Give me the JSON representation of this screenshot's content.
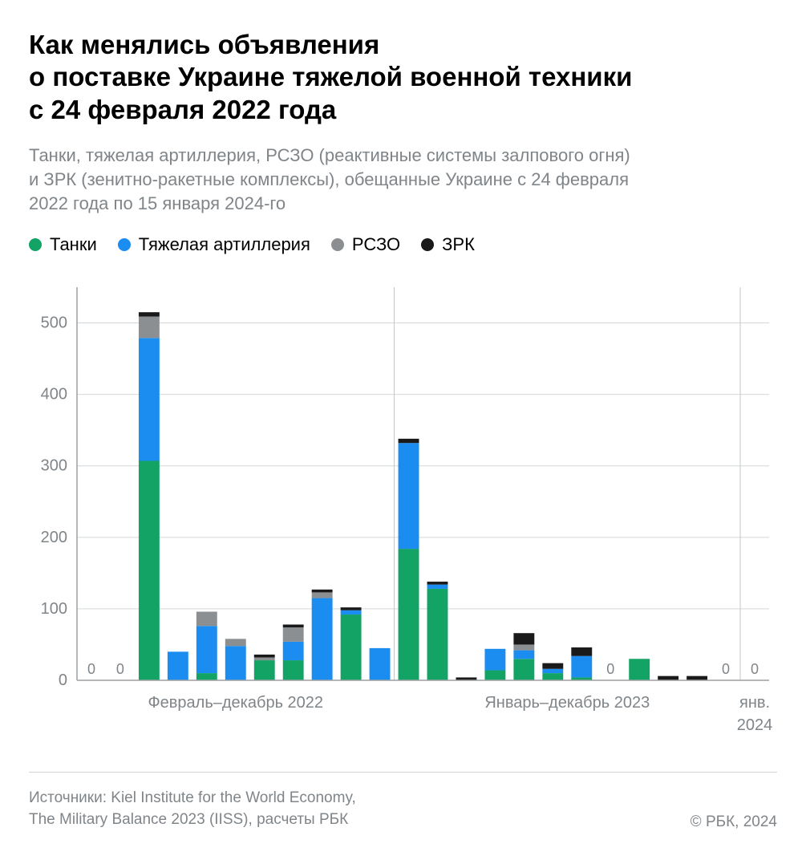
{
  "title_lines": [
    "Как менялись объявления",
    "о поставке Украине тяжелой военной техники",
    "с 24 февраля 2022 года"
  ],
  "title_fontsize": 33,
  "subtitle_lines": [
    "Танки, тяжелая артиллерия, РСЗО (реактивные системы залпового огня)",
    "и ЗРК (зенитно-ракетные комплексы), обещанные Украине с 24 февраля",
    "2022 года по 15 января 2024-го"
  ],
  "subtitle_fontsize": 22,
  "subtitle_color": "#808589",
  "legend_fontsize": 22,
  "legend": [
    {
      "label": "Танки",
      "color": "#13a465"
    },
    {
      "label": "Тяжелая артиллерия",
      "color": "#1b8df0"
    },
    {
      "label": "РСЗО",
      "color": "#8b8f92"
    },
    {
      "label": "ЗРК",
      "color": "#1a1a1a"
    }
  ],
  "chart": {
    "type": "stacked-bar",
    "background_color": "#ffffff",
    "axis_color": "#9ca0a3",
    "grid_color": "#d4d7d9",
    "divider_color": "#c2c6c9",
    "tick_label_color": "#808589",
    "tick_fontsize": 20,
    "bar_label_fontsize": 18,
    "xaxis_label_fontsize": 20,
    "ylim": [
      0,
      550
    ],
    "yticks": [
      0,
      100,
      200,
      300,
      400,
      500
    ],
    "bar_gap_ratio": 0.28,
    "series_keys": [
      "tanks",
      "artillery",
      "mlrs",
      "sam"
    ],
    "series_colors": {
      "tanks": "#13a465",
      "artillery": "#1b8df0",
      "mlrs": "#8b8f92",
      "sam": "#1a1a1a"
    },
    "periods": [
      {
        "label": "Февраль–декабрь 2022",
        "bars": [
          {
            "tanks": 0,
            "artillery": 0,
            "mlrs": 0,
            "sam": 0,
            "zero_label": true
          },
          {
            "tanks": 0,
            "artillery": 0,
            "mlrs": 0,
            "sam": 0,
            "zero_label": true
          },
          {
            "tanks": 307,
            "artillery": 172,
            "mlrs": 30,
            "sam": 6
          },
          {
            "tanks": 0,
            "artillery": 40,
            "mlrs": 0,
            "sam": 0
          },
          {
            "tanks": 10,
            "artillery": 66,
            "mlrs": 20,
            "sam": 0
          },
          {
            "tanks": 0,
            "artillery": 48,
            "mlrs": 10,
            "sam": 0
          },
          {
            "tanks": 28,
            "artillery": 0,
            "mlrs": 4,
            "sam": 4
          },
          {
            "tanks": 28,
            "artillery": 26,
            "mlrs": 20,
            "sam": 4
          },
          {
            "tanks": 0,
            "artillery": 115,
            "mlrs": 8,
            "sam": 4
          },
          {
            "tanks": 92,
            "artillery": 6,
            "mlrs": 0,
            "sam": 4
          },
          {
            "tanks": 0,
            "artillery": 45,
            "mlrs": 0,
            "sam": 0
          }
        ]
      },
      {
        "label": "Январь–декабрь 2023",
        "bars": [
          {
            "tanks": 184,
            "artillery": 148,
            "mlrs": 0,
            "sam": 6
          },
          {
            "tanks": 128,
            "artillery": 6,
            "mlrs": 0,
            "sam": 4
          },
          {
            "tanks": 0,
            "artillery": 0,
            "mlrs": 0,
            "sam": 4
          },
          {
            "tanks": 14,
            "artillery": 30,
            "mlrs": 0,
            "sam": 0
          },
          {
            "tanks": 30,
            "artillery": 12,
            "mlrs": 8,
            "sam": 16
          },
          {
            "tanks": 10,
            "artillery": 6,
            "mlrs": 0,
            "sam": 8
          },
          {
            "tanks": 4,
            "artillery": 30,
            "mlrs": 0,
            "sam": 12
          },
          {
            "tanks": 0,
            "artillery": 0,
            "mlrs": 0,
            "sam": 0,
            "zero_label": true
          },
          {
            "tanks": 30,
            "artillery": 0,
            "mlrs": 0,
            "sam": 0
          },
          {
            "tanks": 0,
            "artillery": 0,
            "mlrs": 0,
            "sam": 6
          },
          {
            "tanks": 0,
            "artillery": 0,
            "mlrs": 0,
            "sam": 6
          },
          {
            "tanks": 0,
            "artillery": 0,
            "mlrs": 0,
            "sam": 0,
            "zero_label": true
          }
        ]
      },
      {
        "label_lines": [
          "янв.",
          "2024"
        ],
        "bars": [
          {
            "tanks": 0,
            "artillery": 0,
            "mlrs": 0,
            "sam": 0,
            "zero_label": true
          }
        ]
      }
    ]
  },
  "footer": {
    "sources_lines": [
      "Источники: Kiel Institute for the World Economy,",
      "The Military Balance 2023 (IISS), расчеты РБК"
    ],
    "copyright": "© РБК, 2024",
    "fontsize": 19,
    "color": "#808589"
  }
}
